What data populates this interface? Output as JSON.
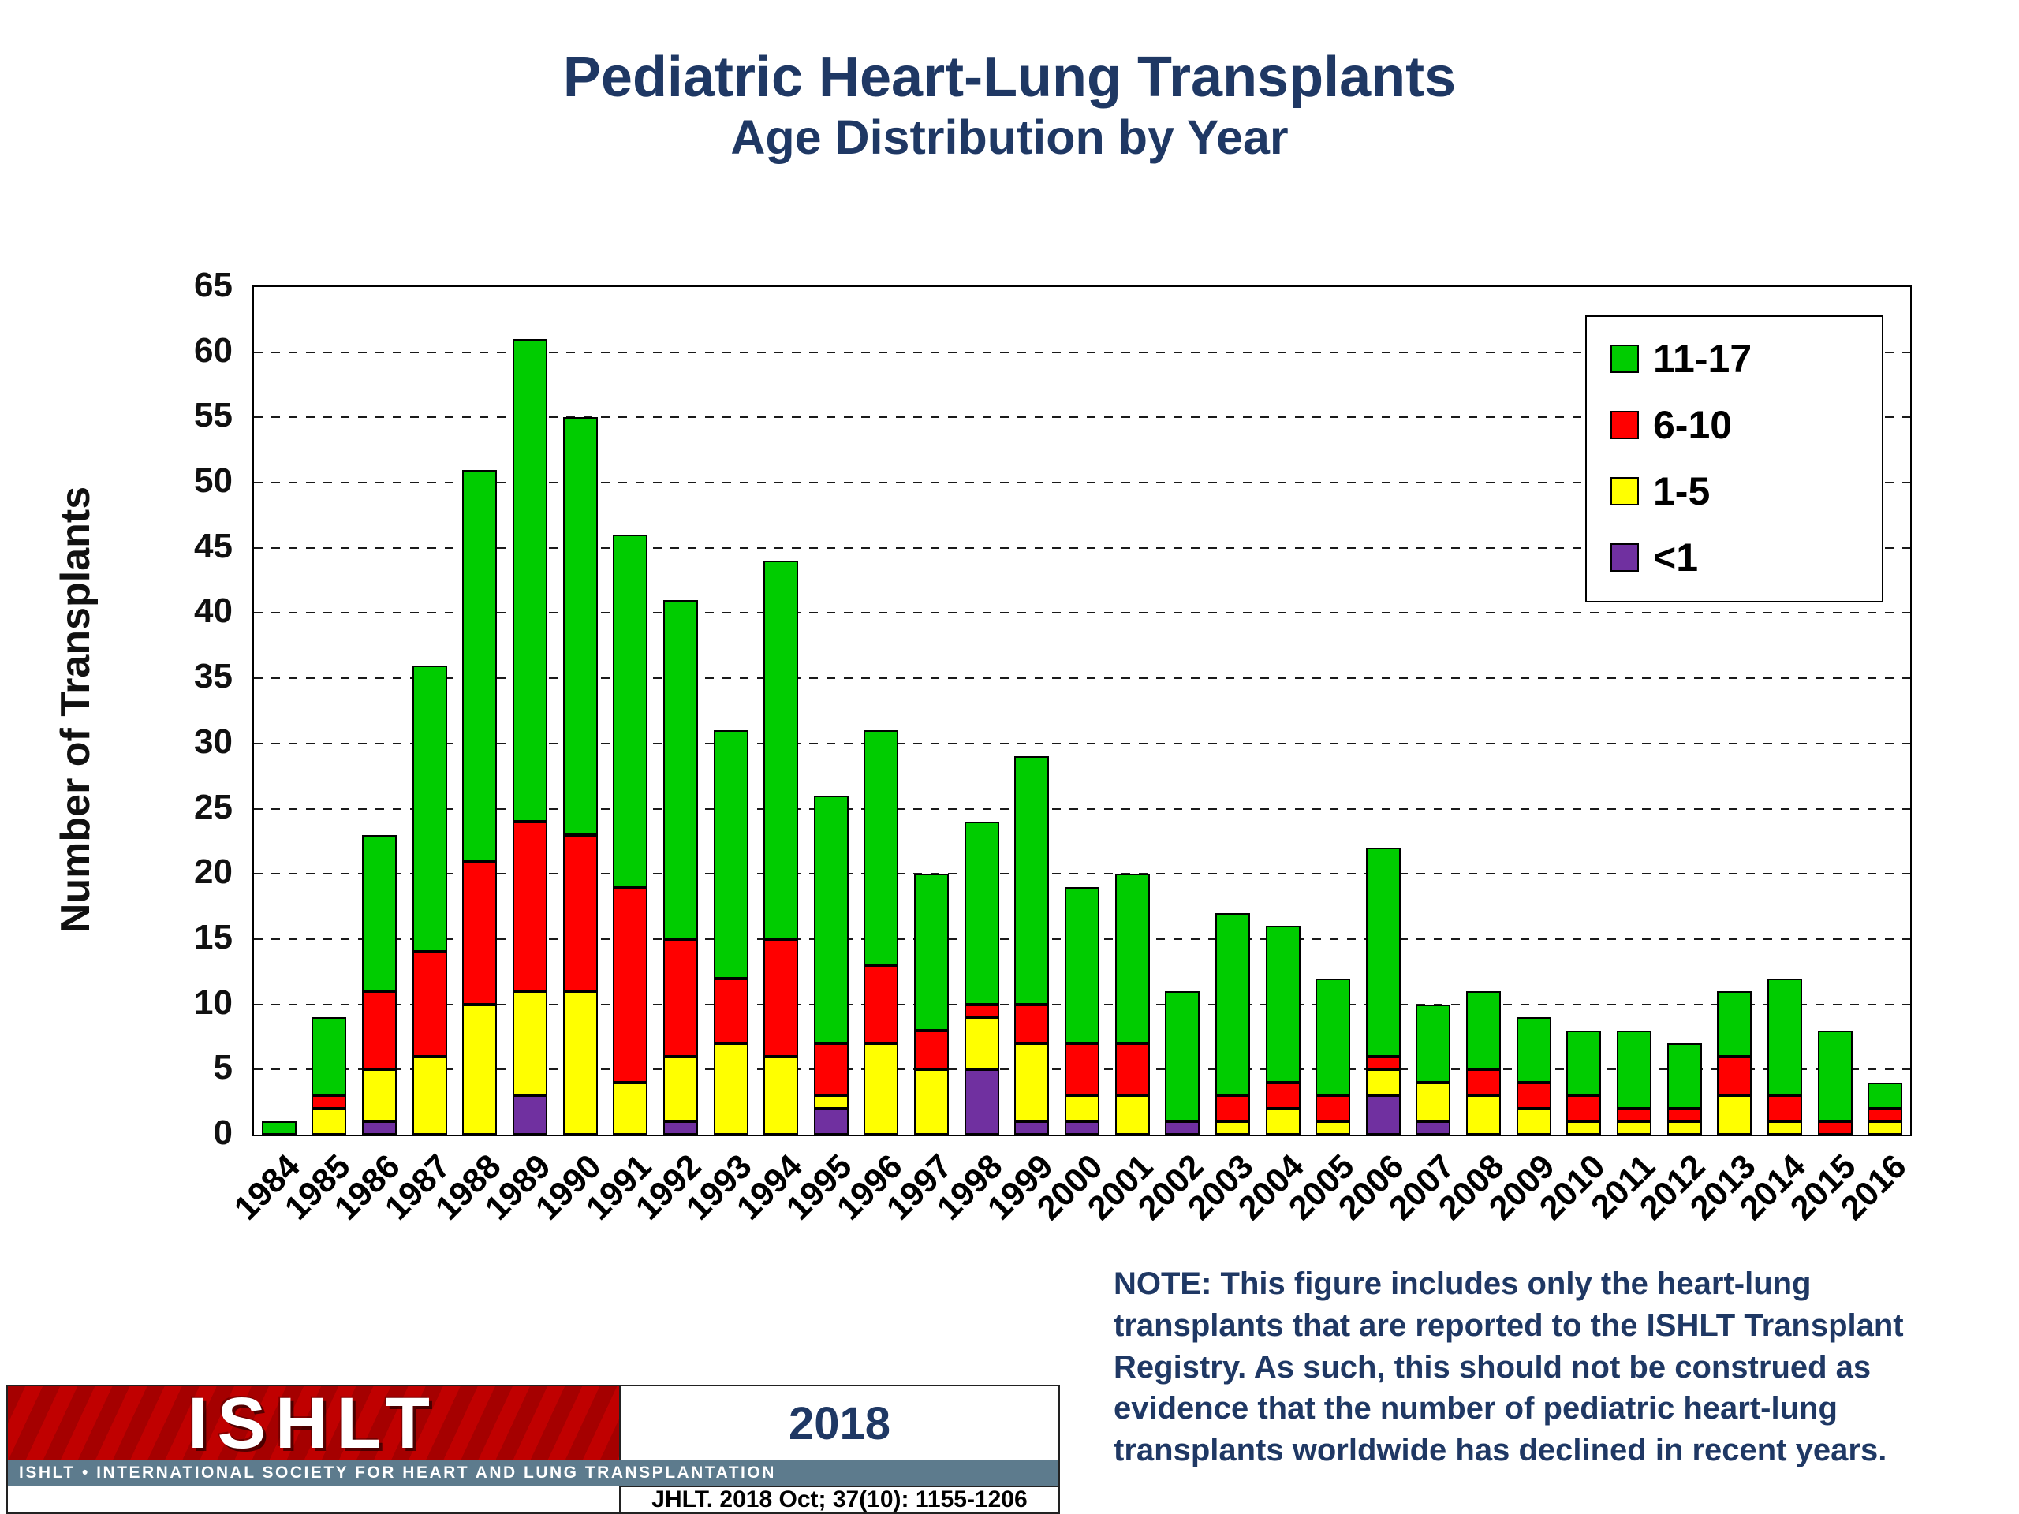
{
  "title": {
    "line1": "Pediatric Heart-Lung Transplants",
    "line2": "Age Distribution by Year"
  },
  "chart_data": {
    "type": "bar",
    "stacked": true,
    "title": "Pediatric Heart-Lung Transplants Age Distribution by Year",
    "xlabel": "",
    "ylabel": "Number of Transplants",
    "ylim": [
      0,
      65
    ],
    "ytick_step": 5,
    "grid": "dashed horizontal",
    "legend_position": "top-right inside plot",
    "legend_order": [
      "11-17",
      "6-10",
      "1-5",
      "<1"
    ],
    "categories": [
      "1984",
      "1985",
      "1986",
      "1987",
      "1988",
      "1989",
      "1990",
      "1991",
      "1992",
      "1993",
      "1994",
      "1995",
      "1996",
      "1997",
      "1998",
      "1999",
      "2000",
      "2001",
      "2002",
      "2003",
      "2004",
      "2005",
      "2006",
      "2007",
      "2008",
      "2009",
      "2010",
      "2011",
      "2012",
      "2013",
      "2014",
      "2015",
      "2016"
    ],
    "series": [
      {
        "name": "<1",
        "color": "#7030A0",
        "values": [
          0,
          0,
          1,
          0,
          0,
          3,
          0,
          0,
          1,
          0,
          0,
          2,
          0,
          0,
          5,
          1,
          1,
          0,
          1,
          0,
          0,
          0,
          3,
          1,
          0,
          0,
          0,
          0,
          0,
          0,
          0,
          0,
          0
        ]
      },
      {
        "name": "1-5",
        "color": "#FFFF00",
        "values": [
          0,
          2,
          4,
          6,
          10,
          8,
          11,
          4,
          5,
          7,
          6,
          1,
          7,
          5,
          4,
          6,
          2,
          3,
          0,
          1,
          2,
          1,
          2,
          3,
          3,
          2,
          1,
          1,
          1,
          3,
          1,
          0,
          1
        ]
      },
      {
        "name": "6-10",
        "color": "#FF0000",
        "values": [
          0,
          1,
          6,
          8,
          11,
          13,
          12,
          15,
          9,
          5,
          9,
          4,
          6,
          3,
          1,
          3,
          4,
          4,
          0,
          2,
          2,
          2,
          1,
          0,
          2,
          2,
          2,
          1,
          1,
          3,
          2,
          1,
          1
        ]
      },
      {
        "name": "11-17",
        "color": "#00CC00",
        "values": [
          1,
          6,
          12,
          22,
          30,
          37,
          32,
          27,
          26,
          19,
          29,
          19,
          18,
          12,
          14,
          19,
          12,
          13,
          10,
          14,
          12,
          9,
          16,
          6,
          6,
          5,
          5,
          6,
          5,
          5,
          9,
          7,
          2
        ]
      }
    ],
    "totals": [
      1,
      9,
      23,
      36,
      51,
      61,
      55,
      46,
      41,
      31,
      44,
      26,
      31,
      20,
      24,
      29,
      19,
      20,
      11,
      17,
      16,
      12,
      22,
      10,
      11,
      9,
      8,
      8,
      7,
      11,
      12,
      8,
      4
    ]
  },
  "note": {
    "text": "NOTE: This figure includes only the heart-lung\ntransplants that are reported to the ISHLT Transplant\nRegistry.  As such, this should not be construed as\nevidence that the number of pediatric heart-lung\ntransplants worldwide has declined in recent years."
  },
  "footer": {
    "logo_text": "ISHLT",
    "banner": "ISHLT • INTERNATIONAL SOCIETY FOR HEART AND LUNG TRANSPLANTATION",
    "year": "2018",
    "citation": "JHLT. 2018 Oct; 37(10): 1155-1206"
  }
}
